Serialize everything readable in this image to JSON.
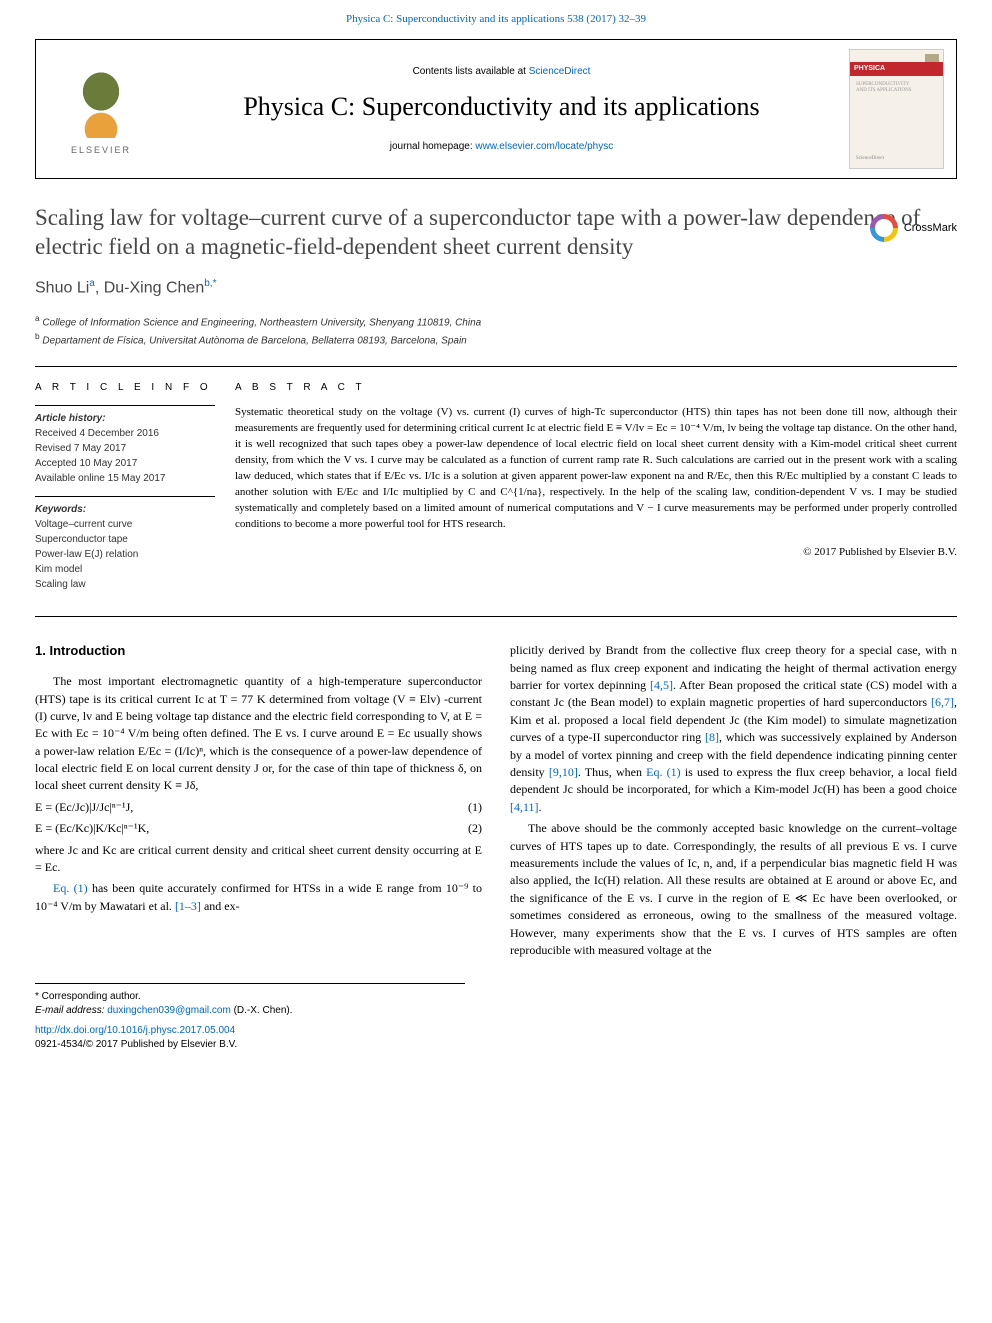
{
  "colors": {
    "link": "#0066cc",
    "crossmark": [
      "#e74c3c",
      "#f1c40f",
      "#3498db",
      "#9b59b6"
    ],
    "journal_red": "#c1272d",
    "text": "#000000",
    "heading": "#474747"
  },
  "topLink": {
    "pre": "Physica C: Superconductivity and its applications 538 (2017) 32–39",
    "url": "Physica C: Superconductivity and its applications 538 (2017) 32–39"
  },
  "header": {
    "publisher": "ELSEVIER",
    "contentsPre": "Contents lists available at ",
    "contentsLink": "ScienceDirect",
    "journal": "Physica C: Superconductivity and its applications",
    "homepagePre": "journal homepage: ",
    "homepageLink": "www.elsevier.com/locate/physc",
    "thumbBand": "PHYSICA"
  },
  "crossmark": "CrossMark",
  "title": "Scaling law for voltage–current curve of a superconductor tape with a power-law dependence of electric field on a magnetic-field-dependent sheet current density",
  "authors": {
    "a1": "Shuo Li",
    "a1sup": "a",
    "a2": "Du-Xing Chen",
    "a2sup": "b,",
    "a2star": "*"
  },
  "affiliations": {
    "a": "College of Information Science and Engineering, Northeastern University, Shenyang 110819, China",
    "b": "Departament de Física, Universitat Autònoma de Barcelona, Bellaterra 08193, Barcelona, Spain"
  },
  "meta": {
    "infoHeading": "A R T I C L E   I N F O",
    "historyLabel": "Article history:",
    "history": "Received 4 December 2016\nRevised 7 May 2017\nAccepted 10 May 2017\nAvailable online 15 May 2017",
    "keywordsLabel": "Keywords:",
    "keywords": "Voltage–current curve\nSuperconductor tape\nPower-law E(J) relation\nKim model\nScaling law"
  },
  "abstract": {
    "heading": "A B S T R A C T",
    "text": "Systematic theoretical study on the voltage (V) vs. current (I) curves of high-Tc superconductor (HTS) thin tapes has not been done till now, although their measurements are frequently used for determining critical current Ic at electric field E ≡ V/lv = Ec = 10⁻⁴ V/m, lv being the voltage tap distance. On the other hand, it is well recognized that such tapes obey a power-law dependence of local electric field on local sheet current density with a Kim-model critical sheet current density, from which the V vs. I curve may be calculated as a function of current ramp rate R. Such calculations are carried out in the present work with a scaling law deduced, which states that if E/Ec vs. I/Ic is a solution at given apparent power-law exponent na and R/Ec, then this R/Ec multiplied by a constant C leads to another solution with E/Ec and I/Ic multiplied by C and C^{1/na}, respectively. In the help of the scaling law, condition-dependent V vs. I may be studied systematically and completely based on a limited amount of numerical computations and V − I curve measurements may be performed under properly controlled conditions to become a more powerful tool for HTS research.",
    "copyright": "© 2017 Published by Elsevier B.V."
  },
  "body": {
    "section1": "1. Introduction",
    "leftP1": "The most important electromagnetic quantity of a high-temperature superconductor (HTS) tape is its critical current Ic at T = 77 K determined from voltage (V ≡ Elv) -current (I) curve, lv and E being voltage tap distance and the electric field corresponding to V, at E = Ec with Ec = 10⁻⁴ V/m being often defined. The E vs. I curve around E = Ec usually shows a power-law relation E/Ec = (I/Ic)ⁿ, which is the consequence of a power-law dependence of local electric field E on local current density J or, for the case of thin tape of thickness δ, on local sheet current density K ≡ Jδ,",
    "eq1": "E = (Ec/Jc)|J/Jc|ⁿ⁻¹J,",
    "eq1num": "(1)",
    "eq2": "E = (Ec/Kc)|K/Kc|ⁿ⁻¹K,",
    "eq2num": "(2)",
    "leftP2a": "where Jc and Kc are critical current density and critical sheet current density occurring at E = Ec.",
    "leftP2link": "Eq. (1)",
    "leftP2b": " has been quite accurately confirmed for HTSs in a wide E range from 10⁻⁹ to 10⁻⁴ V/m by Mawatari et al. ",
    "leftP2link2": "[1–3]",
    "leftP2c": " and ex-",
    "rightP1a": "plicitly derived by Brandt from the collective flux creep theory for a special case, with n being named as flux creep exponent and indicating the height of thermal activation energy barrier for vortex depinning ",
    "rightP1l1": "[4,5]",
    "rightP1b": ". After Bean proposed the critical state (CS) model with a constant Jc (the Bean model) to explain magnetic properties of hard superconductors ",
    "rightP1l2": "[6,7]",
    "rightP1c": ", Kim et al. proposed a local field dependent Jc (the Kim model) to simulate magnetization curves of a type-II superconductor ring ",
    "rightP1l3": "[8]",
    "rightP1d": ", which was successively explained by Anderson by a model of vortex pinning and creep with the field dependence indicating pinning center density ",
    "rightP1l4": "[9,10]",
    "rightP1e": ". Thus, when ",
    "rightP1l5": "Eq. (1)",
    "rightP1f": " is used to express the flux creep behavior, a local field dependent Jc should be incorporated, for which a Kim-model Jc(H) has been a good choice ",
    "rightP1l6": "[4,11]",
    "rightP1g": ".",
    "rightP2": "The above should be the commonly accepted basic knowledge on the current–voltage curves of HTS tapes up to date. Correspondingly, the results of all previous E vs. I curve measurements include the values of Ic, n, and, if a perpendicular bias magnetic field H was also applied, the Ic(H) relation. All these results are obtained at E around or above Ec, and the significance of the E vs. I curve in the region of E ≪ Ec have been overlooked, or sometimes considered as erroneous, owing to the smallness of the measured voltage. However, many experiments show that the E vs. I curves of HTS samples are often reproducible with measured voltage at the"
  },
  "footer": {
    "corrLabel": "* Corresponding author.",
    "emailLabel": "E-mail address: ",
    "email": "duxingchen039@gmail.com",
    "emailTail": " (D.-X. Chen).",
    "doi": "http://dx.doi.org/10.1016/j.physc.2017.05.004",
    "issn": "0921-4534/© 2017 Published by Elsevier B.V."
  }
}
